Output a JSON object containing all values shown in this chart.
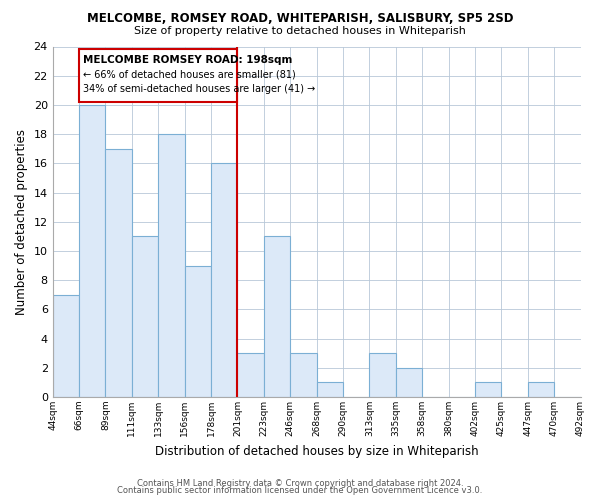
{
  "title": "MELCOMBE, ROMSEY ROAD, WHITEPARISH, SALISBURY, SP5 2SD",
  "subtitle": "Size of property relative to detached houses in Whiteparish",
  "xlabel": "Distribution of detached houses by size in Whiteparish",
  "ylabel": "Number of detached properties",
  "bar_labels": [
    "44sqm",
    "66sqm",
    "89sqm",
    "111sqm",
    "133sqm",
    "156sqm",
    "178sqm",
    "201sqm",
    "223sqm",
    "246sqm",
    "268sqm",
    "290sqm",
    "313sqm",
    "335sqm",
    "358sqm",
    "380sqm",
    "402sqm",
    "425sqm",
    "447sqm",
    "470sqm",
    "492sqm"
  ],
  "bar_values": [
    7,
    20,
    17,
    11,
    18,
    9,
    16,
    3,
    11,
    3,
    1,
    0,
    3,
    2,
    0,
    0,
    1,
    0,
    1,
    0
  ],
  "bar_color": "#dce9f8",
  "bar_edge_color": "#7bafd4",
  "reference_line_index": 7,
  "reference_line_color": "#cc0000",
  "ylim": [
    0,
    24
  ],
  "yticks": [
    0,
    2,
    4,
    6,
    8,
    10,
    12,
    14,
    16,
    18,
    20,
    22,
    24
  ],
  "annotation_title": "MELCOMBE ROMSEY ROAD: 198sqm",
  "annotation_line1": "← 66% of detached houses are smaller (81)",
  "annotation_line2": "34% of semi-detached houses are larger (41) →",
  "annotation_box_color": "#ffffff",
  "annotation_box_edge": "#cc0000",
  "footer1": "Contains HM Land Registry data © Crown copyright and database right 2024.",
  "footer2": "Contains public sector information licensed under the Open Government Licence v3.0.",
  "background_color": "#ffffff",
  "grid_color": "#b8c8d8"
}
